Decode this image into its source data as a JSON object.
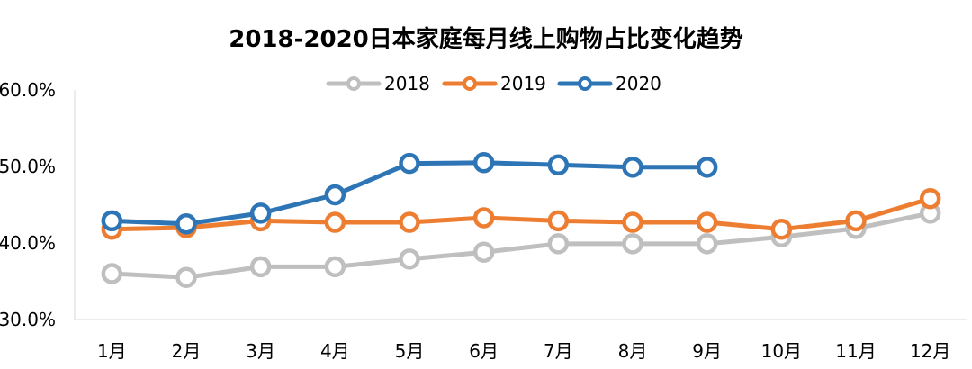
{
  "chart_data": {
    "type": "line",
    "title": "2018-2020日本家庭每月线上购物占比变化趋势",
    "xlabel": "",
    "ylabel": "",
    "categories": [
      "1月",
      "2月",
      "3月",
      "4月",
      "5月",
      "6月",
      "7月",
      "8月",
      "9月",
      "10月",
      "11月",
      "12月"
    ],
    "ylim": [
      30,
      60
    ],
    "yticks": [
      30,
      40,
      50,
      60
    ],
    "ytick_labels": [
      "30.0%",
      "40.0%",
      "50.0%",
      "60.0%"
    ],
    "grid": false,
    "legend_position": "top-center",
    "series": [
      {
        "name": "2018",
        "color": "#BFBFBF",
        "values": [
          36.0,
          35.5,
          36.9,
          36.9,
          37.9,
          38.8,
          39.9,
          39.9,
          39.9,
          40.8,
          41.9,
          43.9
        ]
      },
      {
        "name": "2019",
        "color": "#ED7D31",
        "values": [
          41.8,
          42.0,
          42.9,
          42.7,
          42.7,
          43.3,
          42.9,
          42.7,
          42.7,
          41.8,
          42.9,
          45.8
        ]
      },
      {
        "name": "2020",
        "color": "#2E75B6",
        "values": [
          42.9,
          42.5,
          43.9,
          46.3,
          50.4,
          50.5,
          50.2,
          49.9,
          49.9,
          null,
          null,
          null
        ]
      }
    ]
  }
}
